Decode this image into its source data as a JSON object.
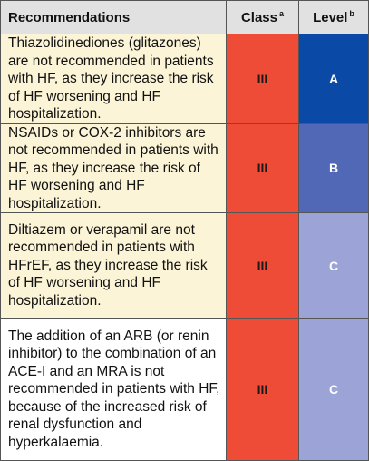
{
  "header": {
    "recommendations": "Recommendations",
    "class_label": "Class",
    "class_sup": "a",
    "level_label": "Level",
    "level_sup": "b"
  },
  "rows": [
    {
      "text": "Thiazolidinediones (glitazones) are not recommended in patients with HF, as they increase the risk of HF worsening and HF hospitalization.",
      "class": "III",
      "level": "A",
      "bg": "#fcf4d6",
      "level_color": "#0a4aa6"
    },
    {
      "text": "NSAIDs or COX-2 inhibitors are not recommended in patients with HF, as they increase the risk of HF worsening and HF hospitalization.",
      "class": "III",
      "level": "B",
      "bg": "#fcf4d6",
      "level_color": "#5068b6"
    },
    {
      "text": "Diltiazem or verapamil are not recommended in patients with HFrEF, as they increase the risk of HF worsening and HF hospitalization.",
      "class": "III",
      "level": "C",
      "bg": "#fcf4d6",
      "level_color": "#9ca3d6"
    },
    {
      "text": "The addition of an ARB (or renin inhibitor) to the combination of an ACE-I and an MRA is not recommended in patients with HF, because of the increased risk of renal dysfunction and hyperkalaemia.",
      "class": "III",
      "level": "C",
      "bg": "#ffffff",
      "level_color": "#9ca3d6"
    }
  ],
  "colors": {
    "class_bg": "#ef4c38",
    "header_bg": "#e1e1e1",
    "border": "#555555"
  }
}
